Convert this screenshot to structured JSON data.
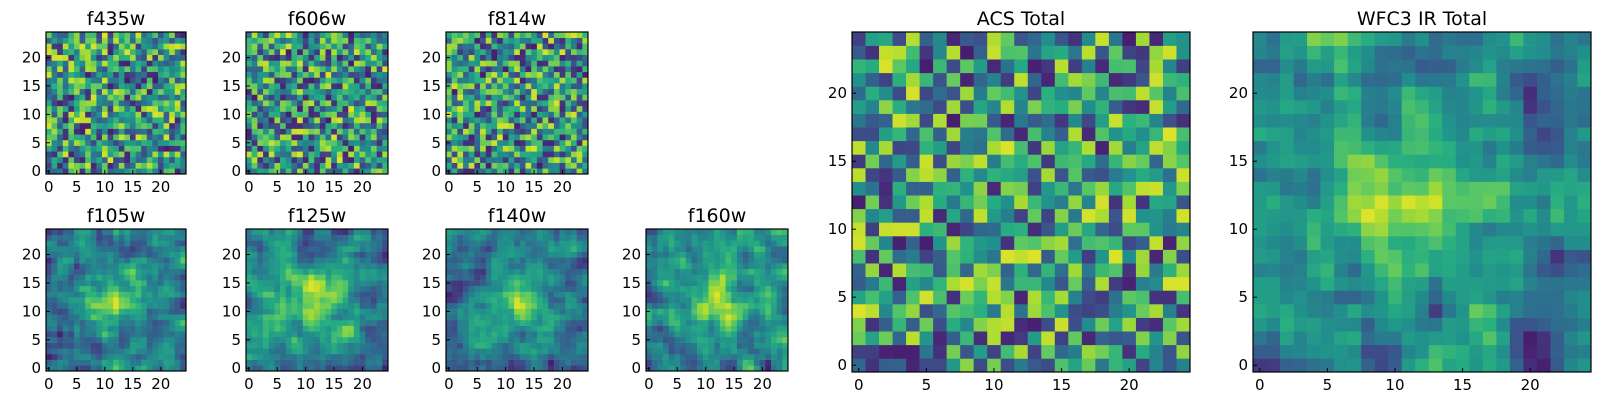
{
  "figure": {
    "colormap": "viridis"
  },
  "chart_data": [
    {
      "type": "heatmap",
      "title": "f435w",
      "grid": [
        25,
        25
      ],
      "xticks": [
        0,
        5,
        10,
        15,
        20
      ],
      "yticks": [
        0,
        5,
        10,
        15,
        20
      ],
      "xlim": [
        0,
        24
      ],
      "ylim": [
        0,
        24
      ],
      "pattern": "noise",
      "seed": 11
    },
    {
      "type": "heatmap",
      "title": "f606w",
      "grid": [
        25,
        25
      ],
      "xticks": [
        0,
        5,
        10,
        15,
        20
      ],
      "yticks": [
        0,
        5,
        10,
        15,
        20
      ],
      "xlim": [
        0,
        24
      ],
      "ylim": [
        0,
        24
      ],
      "pattern": "noise",
      "seed": 23
    },
    {
      "type": "heatmap",
      "title": "f814w",
      "grid": [
        25,
        25
      ],
      "xticks": [
        0,
        5,
        10,
        15,
        20
      ],
      "yticks": [
        0,
        5,
        10,
        15,
        20
      ],
      "xlim": [
        0,
        24
      ],
      "ylim": [
        0,
        24
      ],
      "pattern": "noise",
      "seed": 37
    },
    {
      "type": "heatmap",
      "title": "f105w",
      "grid": [
        25,
        25
      ],
      "xticks": [
        0,
        5,
        10,
        15,
        20
      ],
      "yticks": [
        0,
        5,
        10,
        15,
        20
      ],
      "xlim": [
        0,
        24
      ],
      "ylim": [
        0,
        24
      ],
      "pattern": "smooth",
      "seed": 41
    },
    {
      "type": "heatmap",
      "title": "f125w",
      "grid": [
        25,
        25
      ],
      "xticks": [
        0,
        5,
        10,
        15,
        20
      ],
      "yticks": [
        0,
        5,
        10,
        15,
        20
      ],
      "xlim": [
        0,
        24
      ],
      "ylim": [
        0,
        24
      ],
      "pattern": "smooth",
      "seed": 53
    },
    {
      "type": "heatmap",
      "title": "f140w",
      "grid": [
        25,
        25
      ],
      "xticks": [
        0,
        5,
        10,
        15,
        20
      ],
      "yticks": [
        0,
        5,
        10,
        15,
        20
      ],
      "xlim": [
        0,
        24
      ],
      "ylim": [
        0,
        24
      ],
      "pattern": "smooth",
      "seed": 67
    },
    {
      "type": "heatmap",
      "title": "f160w",
      "grid": [
        25,
        25
      ],
      "xticks": [
        0,
        5,
        10,
        15,
        20
      ],
      "yticks": [
        0,
        5,
        10,
        15,
        20
      ],
      "xlim": [
        0,
        24
      ],
      "ylim": [
        0,
        24
      ],
      "pattern": "smooth",
      "seed": 79
    },
    {
      "type": "heatmap",
      "title": "ACS Total",
      "grid": [
        25,
        25
      ],
      "xticks": [
        0,
        5,
        10,
        15,
        20
      ],
      "yticks": [
        0,
        5,
        10,
        15,
        20
      ],
      "xlim": [
        0,
        24
      ],
      "ylim": [
        0,
        24
      ],
      "pattern": "noise",
      "seed": 97
    },
    {
      "type": "heatmap",
      "title": "WFC3 IR Total",
      "grid": [
        25,
        25
      ],
      "xticks": [
        0,
        5,
        10,
        15,
        20
      ],
      "yticks": [
        0,
        5,
        10,
        15,
        20
      ],
      "xlim": [
        0,
        24
      ],
      "ylim": [
        0,
        24
      ],
      "pattern": "smooth",
      "seed": 131
    }
  ]
}
